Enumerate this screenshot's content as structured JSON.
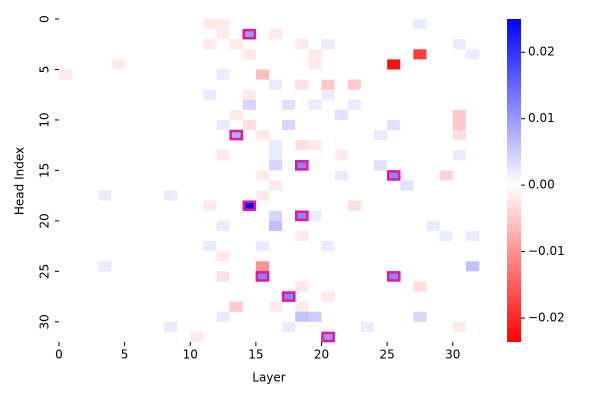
{
  "chart_data": {
    "type": "heatmap",
    "xlabel": "Layer",
    "ylabel": "Head Index",
    "xlim": [
      0,
      32
    ],
    "ylim": [
      32,
      0
    ],
    "xticks": [
      0,
      5,
      10,
      15,
      20,
      25,
      30
    ],
    "yticks": [
      0,
      5,
      10,
      15,
      20,
      25,
      30
    ],
    "clim": [
      -0.0236,
      0.025
    ],
    "cticks": [
      {
        "value": -0.02,
        "label": "−0.02"
      },
      {
        "value": -0.01,
        "label": "−0.01"
      },
      {
        "value": 0,
        "label": "0.00"
      },
      0.01,
      0.02
    ],
    "negative_color": "#ff0000",
    "zero_color": "#ffffff",
    "positive_color": "#0000ff",
    "highlight_color": "#e8179a",
    "highlights": [
      {
        "x": 14,
        "y": 1
      },
      {
        "x": 13,
        "y": 11
      },
      {
        "x": 18,
        "y": 14
      },
      {
        "x": 25,
        "y": 15
      },
      {
        "x": 14,
        "y": 18
      },
      {
        "x": 18,
        "y": 19
      },
      {
        "x": 15,
        "y": 25
      },
      {
        "x": 25,
        "y": 25
      },
      {
        "x": 17,
        "y": 27
      },
      {
        "x": 20,
        "y": 31
      }
    ],
    "values": [
      [
        0,
        0,
        0,
        0,
        0,
        0,
        0,
        0,
        0,
        0,
        0,
        -0.002,
        -0.002,
        0,
        0,
        0,
        0,
        0,
        0,
        0,
        0,
        0,
        0,
        0,
        0,
        0,
        0,
        0.002,
        0,
        0,
        0,
        0
      ],
      [
        0,
        0,
        0,
        0,
        0,
        0,
        0,
        0,
        0,
        0,
        0,
        0,
        -0.002,
        0,
        0.01,
        0,
        -0.002,
        0,
        0,
        0,
        0,
        0,
        0,
        0,
        0,
        0,
        0,
        0,
        0,
        0,
        0,
        0
      ],
      [
        0,
        0,
        0,
        0,
        0,
        0,
        0,
        0,
        0,
        0,
        0,
        -0.002,
        0,
        -0.002,
        0,
        0,
        0,
        0,
        -0.002,
        0,
        0.002,
        0,
        0,
        0,
        0,
        0,
        0,
        0,
        0,
        0,
        0.002,
        0
      ],
      [
        0,
        0,
        0,
        0,
        0,
        0,
        0,
        0,
        0,
        0,
        0,
        0,
        0,
        0,
        -0.002,
        0,
        0,
        0,
        0,
        -0.002,
        0,
        0,
        0,
        0,
        0,
        0,
        0,
        -0.018,
        0,
        0,
        0,
        0.002
      ],
      [
        0,
        0,
        0,
        0,
        -0.002,
        0,
        0,
        0,
        0,
        0,
        0,
        0,
        0,
        0,
        0,
        0,
        0,
        0,
        0,
        -0.002,
        0,
        0,
        0,
        0,
        0,
        -0.022,
        0,
        0,
        0,
        0,
        0,
        0
      ],
      [
        -0.002,
        0,
        0,
        0,
        0,
        0,
        0,
        0,
        0,
        0,
        0,
        0,
        0.002,
        0,
        0,
        -0.006,
        0,
        0,
        0,
        0,
        0,
        0,
        0,
        0,
        0,
        0,
        0,
        0,
        0,
        0,
        0,
        0
      ],
      [
        0,
        0,
        0,
        0,
        0,
        0,
        0,
        0,
        0,
        0,
        0,
        0,
        0,
        0,
        0,
        0,
        0.002,
        0,
        -0.003,
        0,
        -0.005,
        0,
        -0.005,
        0,
        0,
        0,
        0,
        0,
        0,
        0,
        0,
        0
      ],
      [
        0,
        0,
        0,
        0,
        0,
        0,
        0,
        0,
        0,
        0,
        0,
        0.002,
        0,
        0,
        -0.002,
        0,
        0,
        0,
        0,
        0,
        0.002,
        0,
        0,
        0,
        0,
        0,
        0,
        0,
        0,
        0,
        0,
        0
      ],
      [
        0,
        0,
        0,
        0,
        0,
        0,
        0,
        0,
        0,
        0,
        0,
        0,
        0,
        0,
        0.004,
        0,
        0,
        0.003,
        0,
        0.002,
        0,
        0,
        0.002,
        0,
        0,
        0,
        0,
        0,
        0,
        0,
        0,
        0
      ],
      [
        0,
        0,
        0,
        0,
        0,
        0,
        0,
        0,
        0,
        0,
        0,
        0,
        0,
        -0.002,
        0,
        0,
        0,
        0,
        0,
        0,
        0,
        0.003,
        0,
        0,
        0,
        0,
        0,
        0,
        0,
        0,
        -0.005,
        0
      ],
      [
        0,
        0,
        0,
        0,
        0,
        0,
        0,
        0,
        0,
        0,
        0,
        0,
        0.002,
        0,
        -0.003,
        0,
        0,
        0.004,
        0,
        0,
        0,
        0,
        0,
        0,
        0,
        0.003,
        0,
        0,
        0,
        0,
        -0.005,
        0
      ],
      [
        0,
        0,
        0,
        0,
        0,
        0,
        0,
        0,
        0,
        0,
        0,
        0,
        0,
        0.008,
        0,
        -0.002,
        0,
        0,
        0,
        0,
        0,
        0,
        0,
        0,
        0.002,
        0,
        0,
        0,
        0,
        0,
        -0.003,
        0
      ],
      [
        0,
        0,
        0,
        0,
        0,
        0,
        0,
        0,
        0,
        0,
        0,
        0,
        0,
        0,
        0,
        0,
        0.002,
        0,
        -0.003,
        -0.002,
        0,
        0,
        0,
        0,
        0,
        0,
        0,
        0,
        0,
        0,
        0,
        0
      ],
      [
        0,
        0,
        0,
        0,
        0,
        0,
        0,
        0,
        0,
        0,
        0,
        0,
        -0.002,
        0,
        0,
        0,
        0.002,
        0,
        0,
        0,
        0,
        -0.002,
        0,
        0,
        0,
        0,
        0,
        0,
        0,
        0,
        0.002,
        0
      ],
      [
        0,
        0,
        0,
        0,
        0,
        0,
        0,
        0,
        0,
        0,
        0,
        0,
        0,
        0,
        0,
        0,
        0.004,
        0,
        0.012,
        0,
        0,
        0,
        0,
        0,
        0.003,
        0,
        0,
        0,
        0,
        0,
        0,
        0
      ],
      [
        0,
        0,
        0,
        0,
        0,
        0,
        0,
        0,
        0,
        0,
        0,
        0,
        0,
        0,
        0,
        -0.002,
        0,
        0,
        0,
        0,
        0,
        0.002,
        0,
        0,
        0,
        0.012,
        0,
        0,
        0,
        -0.004,
        0,
        0
      ],
      [
        0,
        0,
        0,
        0,
        0,
        0,
        0,
        0,
        0,
        0,
        0,
        0,
        0,
        0,
        0,
        0,
        -0.002,
        0,
        0,
        0,
        0,
        0,
        0,
        0,
        0,
        0,
        0.003,
        0,
        0,
        0,
        0,
        0
      ],
      [
        0,
        0,
        0,
        0.002,
        0,
        0,
        0,
        0,
        0.002,
        0,
        0,
        0,
        0,
        0,
        0,
        -0.002,
        0,
        0,
        0,
        0,
        0,
        0,
        0,
        0,
        0,
        0,
        0,
        0,
        0,
        0,
        0,
        0
      ],
      [
        0,
        0,
        0,
        0,
        0,
        0,
        0,
        0,
        0,
        0,
        0,
        -0.002,
        0,
        0,
        0.025,
        0,
        0,
        0,
        0,
        0,
        0,
        0,
        -0.003,
        0,
        0,
        0,
        0,
        0,
        0,
        0,
        0,
        0
      ],
      [
        0,
        0,
        0,
        0,
        0,
        0,
        0,
        0,
        0,
        0,
        0,
        0,
        0,
        0,
        0,
        0,
        0.004,
        0,
        0.012,
        0.002,
        0,
        0,
        0,
        0,
        0,
        0,
        0,
        0,
        0,
        0,
        0,
        0
      ],
      [
        0,
        0,
        0,
        0,
        0,
        0,
        0,
        0,
        0,
        0,
        0,
        0,
        0.002,
        0,
        0,
        0,
        0.006,
        0,
        0,
        0,
        0,
        0,
        0,
        0,
        0,
        0,
        0,
        0,
        0.002,
        0,
        0,
        0
      ],
      [
        0,
        0,
        0,
        0,
        0,
        0,
        0,
        0,
        0,
        0,
        0,
        0,
        0,
        0,
        0,
        0,
        0,
        0,
        -0.002,
        0,
        0,
        0,
        0,
        0,
        0,
        0,
        0,
        0,
        0,
        0.002,
        0,
        0.002
      ],
      [
        0,
        0,
        0,
        0,
        0,
        0,
        0,
        0,
        0,
        0,
        0,
        0.002,
        0,
        0,
        0,
        0.002,
        0,
        0,
        0,
        0,
        0.002,
        0,
        0,
        0,
        0,
        0,
        0,
        0,
        0,
        0,
        0,
        0
      ],
      [
        0,
        0,
        0,
        0,
        0,
        0,
        0,
        0,
        0,
        0,
        0,
        0,
        -0.002,
        0,
        0,
        0,
        0,
        0,
        0,
        0,
        0,
        0,
        0,
        0,
        0,
        0,
        0,
        0,
        0,
        0,
        0,
        0
      ],
      [
        0,
        0,
        0,
        0.002,
        0,
        0,
        0,
        0,
        0,
        0,
        0,
        0,
        0,
        0,
        0,
        -0.01,
        0,
        0,
        0,
        0,
        0,
        0,
        0,
        0,
        0,
        0,
        0,
        0,
        0,
        0,
        0,
        0.006
      ],
      [
        0,
        0,
        0,
        0,
        0,
        0,
        0,
        0,
        0,
        0,
        0,
        0,
        -0.003,
        0,
        0,
        0.012,
        0,
        0,
        0,
        0,
        0,
        0,
        0,
        0,
        0,
        0.012,
        0,
        0,
        0,
        0,
        0,
        0
      ],
      [
        0,
        0,
        0,
        0,
        0,
        0,
        0,
        0,
        0,
        0,
        0,
        0,
        0,
        0,
        0,
        0,
        0,
        0,
        -0.002,
        0,
        0,
        0,
        0,
        0,
        0,
        0,
        0,
        -0.003,
        0,
        0,
        0,
        0
      ],
      [
        0,
        0,
        0,
        0,
        0,
        0,
        0,
        0,
        0,
        0,
        0,
        0,
        0,
        0,
        0,
        0,
        0,
        0.012,
        0,
        0,
        -0.002,
        0,
        0,
        0,
        0,
        0,
        0,
        0,
        0,
        0,
        0,
        0
      ],
      [
        0,
        0,
        0,
        0,
        0,
        0,
        0,
        0,
        0,
        0,
        0,
        0,
        0,
        -0.005,
        0,
        0,
        -0.002,
        0,
        -0.002,
        0,
        0,
        0,
        0,
        0,
        0,
        0,
        0,
        0,
        0,
        0,
        0,
        0
      ],
      [
        0,
        0,
        0,
        0,
        0,
        0,
        0,
        0,
        0,
        0,
        0,
        0,
        0.002,
        0,
        0,
        0,
        0,
        0,
        0.006,
        0.005,
        0,
        0,
        0,
        0,
        0,
        0,
        0,
        0.004,
        0,
        0,
        0,
        0
      ],
      [
        0,
        0,
        0,
        0,
        0,
        0,
        0,
        0,
        0.002,
        0,
        0,
        0,
        0,
        0,
        0,
        0,
        0,
        0.002,
        0,
        0,
        0,
        0,
        0,
        0.002,
        0,
        0,
        0,
        0,
        0,
        0,
        -0.002,
        0
      ],
      [
        0,
        0,
        0,
        0,
        0,
        0,
        0,
        0,
        0,
        0,
        -0.002,
        0,
        0,
        0,
        0,
        0,
        0,
        0,
        0,
        0,
        0.01,
        0,
        0,
        0,
        0,
        0,
        0,
        0,
        0,
        0,
        0,
        0
      ]
    ]
  }
}
